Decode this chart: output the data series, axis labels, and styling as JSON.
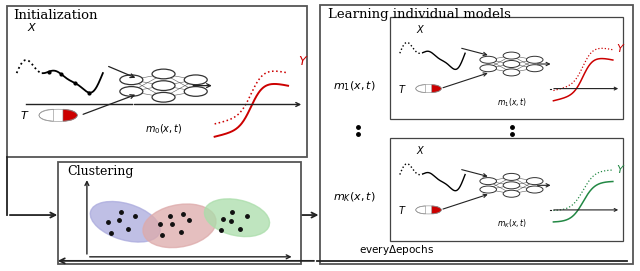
{
  "fig_width": 6.4,
  "fig_height": 2.71,
  "dpi": 100,
  "bg_color": "#ffffff",
  "red_color": "#cc0000",
  "green_color": "#228844",
  "black_color": "#111111",
  "cluster1_color": "#aaaadd",
  "cluster2_color": "#ddaaaa",
  "cluster3_color": "#aaddaa",
  "title_init": "Initialization",
  "title_learn": "Learning individual models",
  "title_cluster": "Clustering",
  "every_text": "everyΔepochs"
}
